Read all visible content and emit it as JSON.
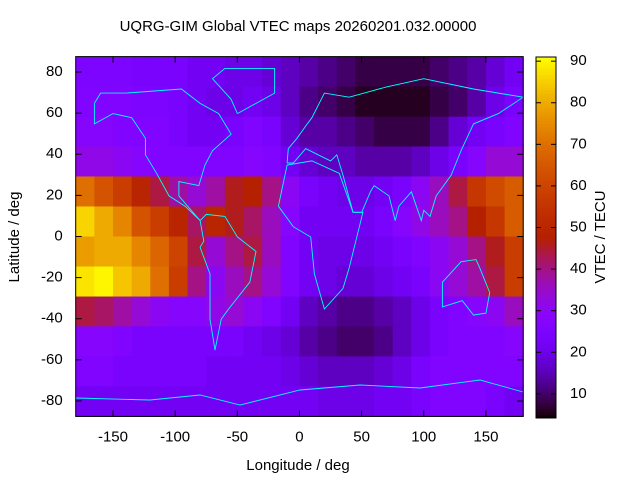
{
  "chart_data": {
    "type": "heatmap",
    "title": "UQRG-GIM Global VTEC maps 20260201.032.00000",
    "x_label": "Longitude / deg",
    "y_label": "Latitude / deg",
    "colorbar_label": "VTEC / TECU",
    "x": [
      -172.5,
      -157.5,
      -142.5,
      -127.5,
      -112.5,
      -97.5,
      -82.5,
      -67.5,
      -52.5,
      -37.5,
      -22.5,
      -7.5,
      7.5,
      22.5,
      37.5,
      52.5,
      67.5,
      82.5,
      97.5,
      112.5,
      127.5,
      142.5,
      157.5,
      172.5
    ],
    "y": [
      80.2,
      65.6,
      51,
      36.5,
      21.9,
      7.3,
      -7.3,
      -21.9,
      -36.5,
      -51,
      -65.6,
      -80.2
    ],
    "values": [
      [
        25,
        25,
        25,
        24,
        24,
        24,
        22,
        22,
        20,
        20,
        18,
        16,
        14,
        12,
        10,
        8,
        8,
        8,
        8,
        10,
        12,
        14,
        18,
        22
      ],
      [
        26,
        26,
        26,
        25,
        25,
        24,
        22,
        20,
        20,
        22,
        20,
        16,
        12,
        10,
        8,
        6,
        6,
        6,
        6,
        8,
        10,
        14,
        20,
        24
      ],
      [
        28,
        28,
        26,
        26,
        26,
        24,
        22,
        22,
        24,
        26,
        24,
        18,
        14,
        14,
        12,
        10,
        8,
        8,
        8,
        12,
        18,
        22,
        24,
        26
      ],
      [
        32,
        32,
        30,
        28,
        26,
        26,
        26,
        26,
        26,
        28,
        26,
        22,
        18,
        16,
        16,
        14,
        14,
        14,
        16,
        20,
        24,
        28,
        34,
        34
      ],
      [
        70,
        64,
        58,
        50,
        44,
        38,
        34,
        38,
        46,
        48,
        40,
        30,
        24,
        22,
        20,
        20,
        22,
        24,
        30,
        36,
        44,
        56,
        62,
        66
      ],
      [
        86,
        80,
        74,
        64,
        58,
        50,
        42,
        50,
        46,
        42,
        36,
        28,
        22,
        22,
        22,
        22,
        24,
        28,
        32,
        36,
        40,
        48,
        56,
        66
      ],
      [
        78,
        80,
        80,
        74,
        68,
        60,
        44,
        34,
        40,
        44,
        36,
        26,
        22,
        20,
        20,
        20,
        22,
        24,
        26,
        30,
        34,
        40,
        46,
        58
      ],
      [
        88,
        90,
        84,
        80,
        70,
        58,
        40,
        30,
        36,
        40,
        34,
        26,
        22,
        20,
        18,
        18,
        20,
        22,
        24,
        30,
        34,
        38,
        44,
        58
      ],
      [
        44,
        42,
        38,
        34,
        30,
        28,
        28,
        32,
        34,
        30,
        26,
        22,
        16,
        14,
        12,
        12,
        14,
        16,
        20,
        24,
        26,
        28,
        30,
        36
      ],
      [
        28,
        28,
        26,
        24,
        24,
        24,
        24,
        24,
        24,
        22,
        20,
        18,
        14,
        12,
        10,
        10,
        12,
        16,
        20,
        24,
        26,
        26,
        26,
        28
      ],
      [
        26,
        26,
        24,
        24,
        24,
        24,
        24,
        22,
        22,
        22,
        22,
        20,
        18,
        16,
        16,
        16,
        18,
        20,
        24,
        26,
        26,
        26,
        26,
        26
      ],
      [
        22,
        22,
        22,
        22,
        22,
        22,
        22,
        22,
        22,
        22,
        22,
        22,
        22,
        20,
        20,
        20,
        22,
        22,
        24,
        26,
        26,
        26,
        24,
        22
      ]
    ],
    "xlim": [
      -180,
      180
    ],
    "ylim": [
      -87.5,
      87.5
    ],
    "zlim": [
      4.2,
      91
    ],
    "xticks": [
      -150,
      -100,
      -50,
      0,
      50,
      100,
      150
    ],
    "yticks": [
      -80,
      -60,
      -40,
      -20,
      0,
      20,
      40,
      60,
      80
    ],
    "zticks": [
      10,
      20,
      30,
      40,
      50,
      60,
      70,
      80,
      90
    ],
    "palette": [
      7,
      5,
      15
    ],
    "coastline_color": "#00ffff"
  }
}
